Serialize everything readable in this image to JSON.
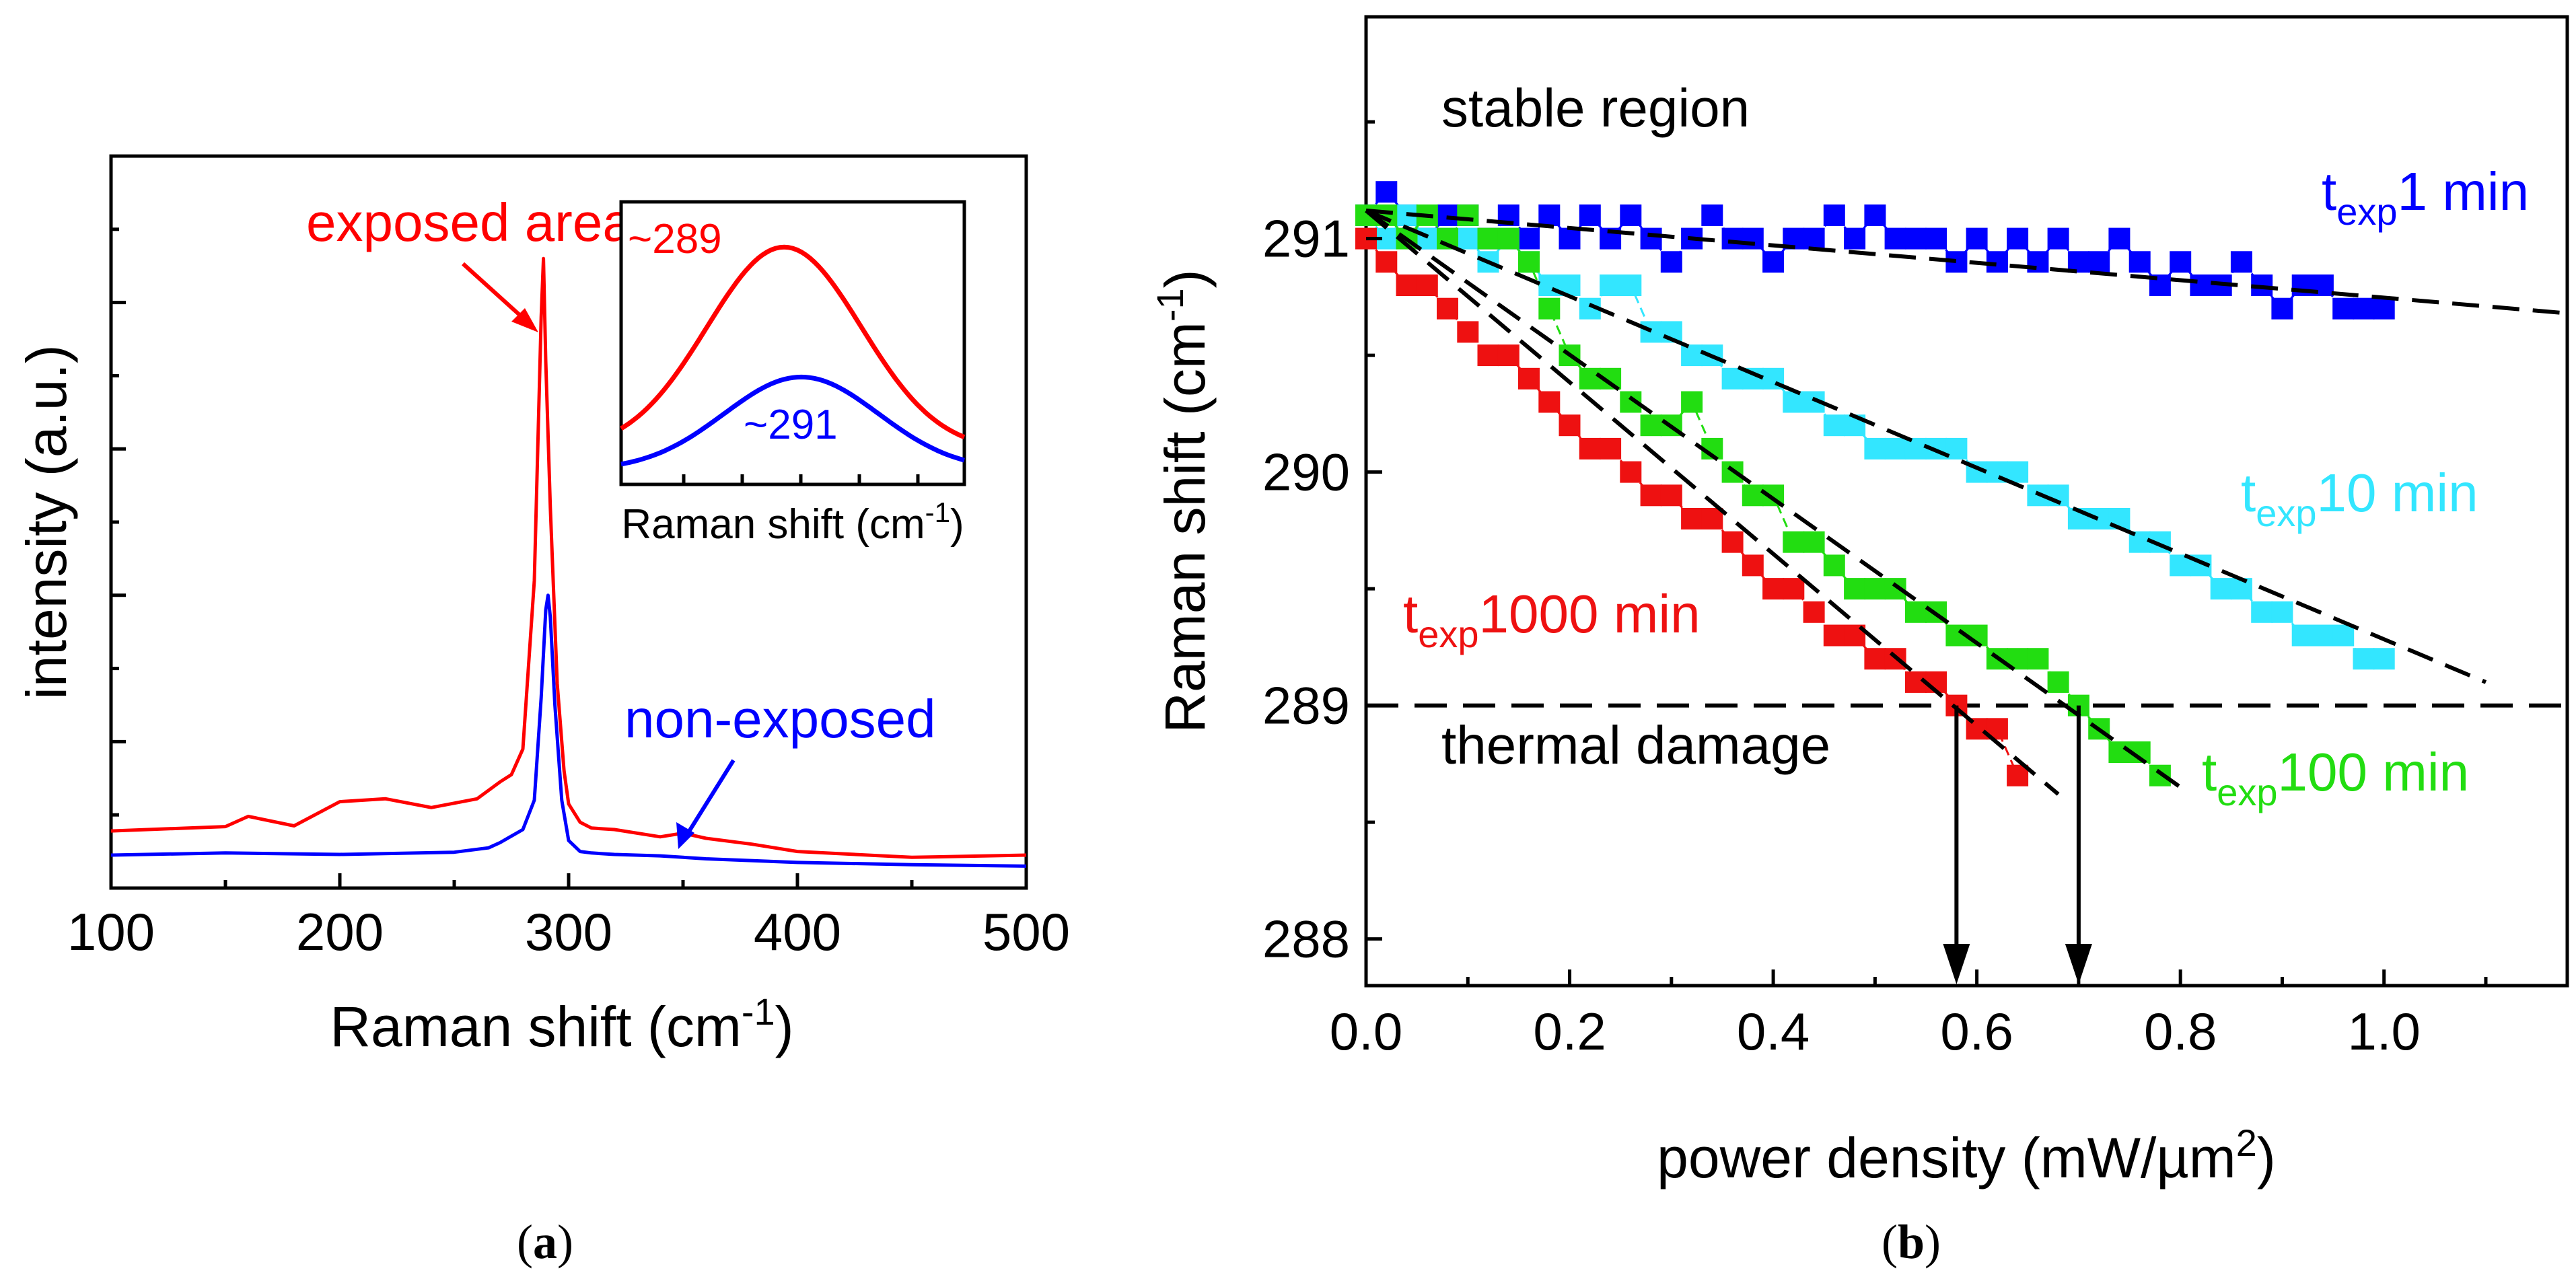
{
  "chart_data": [
    {
      "panel": "a",
      "type": "line",
      "panel_label_open": "(",
      "panel_label_letter": "a",
      "panel_label_close": ")",
      "xlabel": "Raman shift (cm",
      "xlabel_sup": "-1",
      "xlabel_end": ")",
      "ylabel": "intensity (a.u.)",
      "xlim": [
        100,
        500
      ],
      "ylim": [
        0,
        1
      ],
      "xticks": [
        100,
        200,
        300,
        400,
        500
      ],
      "yticks_unlabeled": [
        0.2,
        0.4,
        0.6,
        0.8
      ],
      "series": [
        {
          "name": "exposed area",
          "color": "#ff0000",
          "x": [
            100,
            150,
            160,
            180,
            200,
            220,
            240,
            260,
            270,
            275,
            280,
            285,
            288,
            289,
            290,
            292,
            295,
            298,
            300,
            305,
            310,
            320,
            340,
            350,
            360,
            380,
            400,
            450,
            500
          ],
          "y": [
            0.078,
            0.084,
            0.098,
            0.085,
            0.118,
            0.122,
            0.11,
            0.122,
            0.145,
            0.155,
            0.19,
            0.42,
            0.78,
            0.86,
            0.72,
            0.52,
            0.28,
            0.16,
            0.115,
            0.09,
            0.082,
            0.08,
            0.07,
            0.075,
            0.068,
            0.06,
            0.05,
            0.042,
            0.045
          ]
        },
        {
          "name": "non-exposed",
          "color": "#0000ff",
          "x": [
            100,
            150,
            200,
            250,
            265,
            270,
            280,
            285,
            288,
            290,
            291,
            292,
            294,
            297,
            300,
            305,
            310,
            320,
            340,
            360,
            400,
            450,
            500
          ],
          "y": [
            0.045,
            0.048,
            0.046,
            0.049,
            0.055,
            0.062,
            0.08,
            0.12,
            0.26,
            0.38,
            0.4,
            0.37,
            0.25,
            0.12,
            0.065,
            0.05,
            0.048,
            0.046,
            0.044,
            0.04,
            0.035,
            0.032,
            0.03
          ]
        }
      ],
      "annotations": {
        "exposed": "exposed area",
        "nonexposed": "non-exposed"
      },
      "inset": {
        "type": "line",
        "xlabel": "Raman shift (cm",
        "xlabel_sup": "-1",
        "xlabel_end": ")",
        "peak_exposed": "~289",
        "peak_nonexposed": "~291",
        "series": [
          {
            "name": "exposed area",
            "color": "#ff0000",
            "center": 289,
            "amp": 0.72,
            "base": 0.12,
            "width": 9
          },
          {
            "name": "non-exposed",
            "color": "#0000ff",
            "center": 291,
            "amp": 0.33,
            "base": 0.05,
            "width": 9
          }
        ],
        "xlim": [
          270,
          310
        ],
        "ylim": [
          0,
          1
        ]
      }
    },
    {
      "panel": "b",
      "type": "scatter",
      "panel_label_open": "(",
      "panel_label_letter": "b",
      "panel_label_close": ")",
      "xlabel": "power density (mW/µm",
      "xlabel_sup": "2",
      "xlabel_end": ")",
      "ylabel": "Raman shift (cm",
      "ylabel_sup": "-1",
      "ylabel_end": ")",
      "xlim": [
        0.0,
        1.18
      ],
      "ylim": [
        287.8,
        291.95
      ],
      "xticks": [
        "0.0",
        "0.2",
        "0.4",
        "0.6",
        "0.8",
        "1.0"
      ],
      "yticks": [
        "288",
        "289",
        "290",
        "291"
      ],
      "threshold": {
        "y": 289.0,
        "label_above": "stable region",
        "label_below": "thermal damage"
      },
      "arrows_x": [
        0.58,
        0.7
      ],
      "series": [
        {
          "name": "t_exp 1 min",
          "label_main": "t",
          "label_sub": "exp",
          "label_tail": "1 min",
          "color": "#0000ff",
          "x": [
            0.0,
            0.02,
            0.04,
            0.06,
            0.08,
            0.1,
            0.12,
            0.14,
            0.16,
            0.18,
            0.2,
            0.22,
            0.24,
            0.26,
            0.28,
            0.3,
            0.32,
            0.34,
            0.36,
            0.38,
            0.4,
            0.42,
            0.44,
            0.46,
            0.48,
            0.5,
            0.52,
            0.54,
            0.56,
            0.58,
            0.6,
            0.62,
            0.64,
            0.66,
            0.68,
            0.7,
            0.72,
            0.74,
            0.76,
            0.78,
            0.8,
            0.82,
            0.84,
            0.86,
            0.88,
            0.9,
            0.92,
            0.94,
            0.96,
            0.98,
            1.0
          ],
          "y": [
            291.1,
            291.2,
            291.1,
            291.0,
            291.1,
            291.1,
            291.0,
            291.1,
            291.0,
            291.1,
            291.0,
            291.1,
            291.0,
            291.1,
            291.0,
            290.9,
            291.0,
            291.1,
            291.0,
            291.0,
            290.9,
            291.0,
            291.0,
            291.1,
            291.0,
            291.1,
            291.0,
            291.0,
            291.0,
            290.9,
            291.0,
            290.9,
            291.0,
            290.9,
            291.0,
            290.9,
            290.9,
            291.0,
            290.9,
            290.8,
            290.9,
            290.8,
            290.8,
            290.9,
            290.8,
            290.7,
            290.8,
            290.8,
            290.7,
            290.7,
            290.7
          ],
          "fit": {
            "x1": 0.0,
            "y1": 291.12,
            "x2": 1.18,
            "y2": 290.68
          }
        },
        {
          "name": "t_exp 10 min",
          "label_main": "t",
          "label_sub": "exp",
          "label_tail": "10 min",
          "color": "#33e6ff",
          "x": [
            0.0,
            0.02,
            0.04,
            0.06,
            0.08,
            0.1,
            0.12,
            0.14,
            0.16,
            0.18,
            0.2,
            0.22,
            0.24,
            0.26,
            0.28,
            0.3,
            0.32,
            0.34,
            0.36,
            0.38,
            0.4,
            0.42,
            0.44,
            0.46,
            0.48,
            0.5,
            0.52,
            0.54,
            0.56,
            0.58,
            0.6,
            0.62,
            0.64,
            0.66,
            0.68,
            0.7,
            0.72,
            0.74,
            0.76,
            0.78,
            0.8,
            0.82,
            0.84,
            0.86,
            0.88,
            0.9,
            0.92,
            0.94,
            0.96,
            0.98,
            1.0
          ],
          "y": [
            291.1,
            291.0,
            291.1,
            291.0,
            291.0,
            291.0,
            290.9,
            291.0,
            290.9,
            290.8,
            290.8,
            290.7,
            290.8,
            290.8,
            290.6,
            290.6,
            290.5,
            290.5,
            290.4,
            290.4,
            290.4,
            290.3,
            290.3,
            290.2,
            290.2,
            290.1,
            290.1,
            290.1,
            290.1,
            290.1,
            290.0,
            290.0,
            290.0,
            289.9,
            289.9,
            289.8,
            289.8,
            289.8,
            289.7,
            289.7,
            289.6,
            289.6,
            289.5,
            289.5,
            289.4,
            289.4,
            289.3,
            289.3,
            289.3,
            289.2,
            289.2
          ],
          "fit": {
            "x1": 0.0,
            "y1": 291.12,
            "x2": 1.1,
            "y2": 289.1
          }
        },
        {
          "name": "t_exp 100 min",
          "label_main": "t",
          "label_sub": "exp",
          "label_tail": "100 min",
          "color": "#22dd11",
          "x": [
            0.0,
            0.02,
            0.04,
            0.06,
            0.08,
            0.1,
            0.12,
            0.14,
            0.16,
            0.18,
            0.2,
            0.22,
            0.24,
            0.26,
            0.28,
            0.3,
            0.32,
            0.34,
            0.36,
            0.38,
            0.4,
            0.42,
            0.44,
            0.46,
            0.48,
            0.5,
            0.52,
            0.54,
            0.56,
            0.58,
            0.6,
            0.62,
            0.64,
            0.66,
            0.68,
            0.7,
            0.72,
            0.74,
            0.76,
            0.78
          ],
          "y": [
            291.1,
            291.1,
            291.0,
            291.1,
            291.0,
            291.1,
            291.0,
            291.0,
            290.9,
            290.7,
            290.5,
            290.4,
            290.4,
            290.3,
            290.2,
            290.2,
            290.3,
            290.1,
            290.0,
            289.9,
            289.9,
            289.7,
            289.7,
            289.6,
            289.5,
            289.5,
            289.5,
            289.4,
            289.4,
            289.3,
            289.3,
            289.2,
            289.2,
            289.2,
            289.1,
            289.0,
            288.9,
            288.8,
            288.8,
            288.7
          ],
          "fit": {
            "x1": 0.0,
            "y1": 291.12,
            "x2": 0.8,
            "y2": 288.65
          }
        },
        {
          "name": "t_exp 1000 min",
          "label_main": "t",
          "label_sub": "exp",
          "label_tail": "1000 min",
          "color": "#ee1111",
          "x": [
            0.0,
            0.02,
            0.04,
            0.06,
            0.08,
            0.1,
            0.12,
            0.14,
            0.16,
            0.18,
            0.2,
            0.22,
            0.24,
            0.26,
            0.28,
            0.3,
            0.32,
            0.34,
            0.36,
            0.38,
            0.4,
            0.42,
            0.44,
            0.46,
            0.48,
            0.5,
            0.52,
            0.54,
            0.56,
            0.58,
            0.6,
            0.62,
            0.64
          ],
          "y": [
            291.0,
            290.9,
            290.8,
            290.8,
            290.7,
            290.6,
            290.5,
            290.5,
            290.4,
            290.3,
            290.2,
            290.1,
            290.1,
            290.0,
            289.9,
            289.9,
            289.8,
            289.8,
            289.7,
            289.6,
            289.5,
            289.5,
            289.4,
            289.3,
            289.3,
            289.2,
            289.2,
            289.1,
            289.1,
            289.0,
            288.9,
            288.9,
            288.7
          ],
          "fit": {
            "x1": 0.0,
            "y1": 291.12,
            "x2": 0.68,
            "y2": 288.62
          }
        }
      ]
    }
  ]
}
